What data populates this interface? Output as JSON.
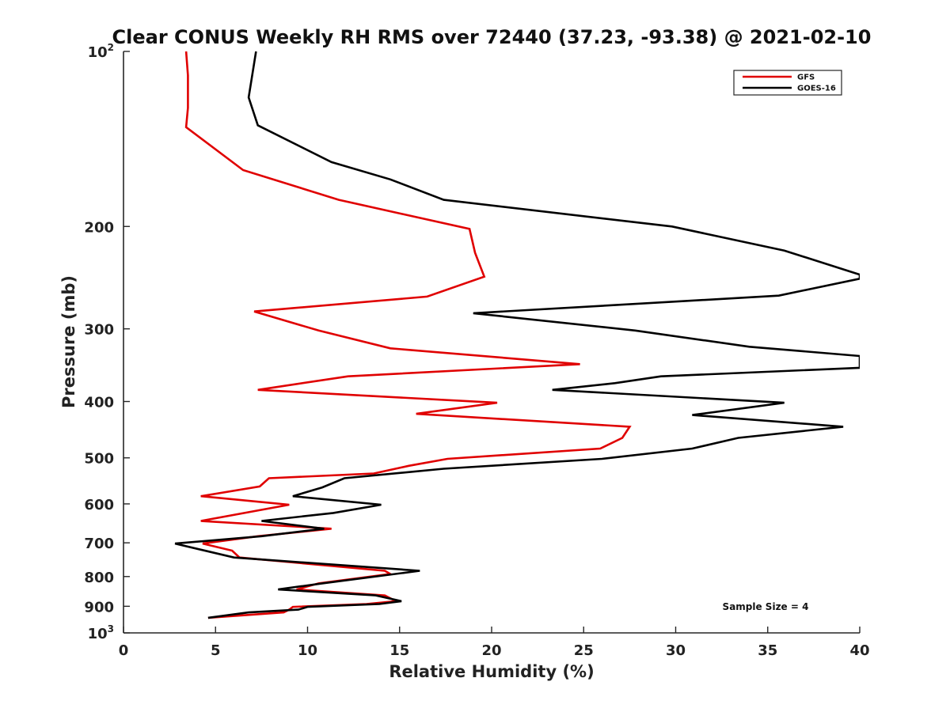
{
  "chart_data": {
    "type": "line",
    "title": "Clear CONUS Weekly RH RMS over 72440 (37.23, -93.38) @ 2021-02-10",
    "xlabel": "Relative Humidity (%)",
    "ylabel": "Pressure (mb)",
    "xlim": [
      0,
      40
    ],
    "ylim": [
      100,
      1000
    ],
    "yscale": "log",
    "y_reversed": true,
    "x_ticks": [
      "0",
      "5",
      "10",
      "15",
      "20",
      "25",
      "30",
      "35",
      "40"
    ],
    "y_ticks": [
      {
        "value": 100,
        "base": "10",
        "exp": "2"
      },
      {
        "value": 200,
        "label": "200"
      },
      {
        "value": 300,
        "label": "300"
      },
      {
        "value": 400,
        "label": "400"
      },
      {
        "value": 500,
        "label": "500"
      },
      {
        "value": 600,
        "label": "600"
      },
      {
        "value": 700,
        "label": "700"
      },
      {
        "value": 800,
        "label": "800"
      },
      {
        "value": 900,
        "label": "900"
      },
      {
        "value": 1000,
        "base": "10",
        "exp": "3"
      }
    ],
    "grid": false,
    "legend_position": "top-right",
    "annotation": "Sample Size = 4",
    "series": [
      {
        "name": "GFS",
        "color": "#e00000",
        "points": [
          [
            3.4,
            100
          ],
          [
            3.5,
            110
          ],
          [
            3.5,
            125
          ],
          [
            3.4,
            135
          ],
          [
            6.5,
            160
          ],
          [
            11.7,
            180
          ],
          [
            18.8,
            202
          ],
          [
            19.1,
            222
          ],
          [
            19.6,
            244
          ],
          [
            16.5,
            264
          ],
          [
            7.1,
            280
          ],
          [
            10.6,
            302
          ],
          [
            14.5,
            324
          ],
          [
            24.8,
            345
          ],
          [
            12.2,
            362
          ],
          [
            7.3,
            382
          ],
          [
            20.3,
            402
          ],
          [
            15.9,
            420
          ],
          [
            27.5,
            442
          ],
          [
            27.1,
            462
          ],
          [
            25.9,
            482
          ],
          [
            17.6,
            502
          ],
          [
            15.5,
            516
          ],
          [
            13.6,
            532
          ],
          [
            7.9,
            542
          ],
          [
            7.4,
            560
          ],
          [
            4.2,
            582
          ],
          [
            9.0,
            602
          ],
          [
            4.2,
            642
          ],
          [
            11.3,
            662
          ],
          [
            7.3,
            682
          ],
          [
            4.3,
            702
          ],
          [
            5.9,
            722
          ],
          [
            6.3,
            742
          ],
          [
            14.2,
            782
          ],
          [
            14.5,
            792
          ],
          [
            10.6,
            822
          ],
          [
            9.4,
            842
          ],
          [
            14.2,
            862
          ],
          [
            14.8,
            882
          ],
          [
            13.2,
            892
          ],
          [
            9.2,
            902
          ],
          [
            9.0,
            912
          ],
          [
            8.7,
            922
          ],
          [
            4.6,
            942
          ]
        ]
      },
      {
        "name": "GOES-16",
        "color": "#000000",
        "points": [
          [
            7.2,
            100
          ],
          [
            6.8,
            120
          ],
          [
            7.3,
            134
          ],
          [
            11.3,
            155
          ],
          [
            14.5,
            166
          ],
          [
            17.4,
            180
          ],
          [
            29.8,
            200
          ],
          [
            35.9,
            220
          ],
          [
            40.0,
            242
          ],
          [
            40.0,
            246
          ],
          [
            35.6,
            263
          ],
          [
            19.0,
            282
          ],
          [
            27.8,
            302
          ],
          [
            34.0,
            322
          ],
          [
            40.0,
            334
          ],
          [
            40.0,
            350
          ],
          [
            29.2,
            362
          ],
          [
            26.7,
            372
          ],
          [
            23.3,
            382
          ],
          [
            35.9,
            402
          ],
          [
            30.9,
            422
          ],
          [
            39.1,
            442
          ],
          [
            33.4,
            462
          ],
          [
            30.9,
            482
          ],
          [
            26.0,
            502
          ],
          [
            17.4,
            522
          ],
          [
            12.0,
            542
          ],
          [
            10.8,
            562
          ],
          [
            9.2,
            582
          ],
          [
            14.0,
            602
          ],
          [
            11.4,
            622
          ],
          [
            7.5,
            642
          ],
          [
            10.9,
            662
          ],
          [
            7.5,
            682
          ],
          [
            2.8,
            702
          ],
          [
            6.0,
            742
          ],
          [
            16.1,
            782
          ],
          [
            10.8,
            822
          ],
          [
            8.4,
            842
          ],
          [
            13.7,
            862
          ],
          [
            15.1,
            882
          ],
          [
            13.9,
            892
          ],
          [
            10.0,
            902
          ],
          [
            9.5,
            912
          ],
          [
            6.8,
            922
          ],
          [
            4.6,
            942
          ]
        ]
      }
    ]
  }
}
